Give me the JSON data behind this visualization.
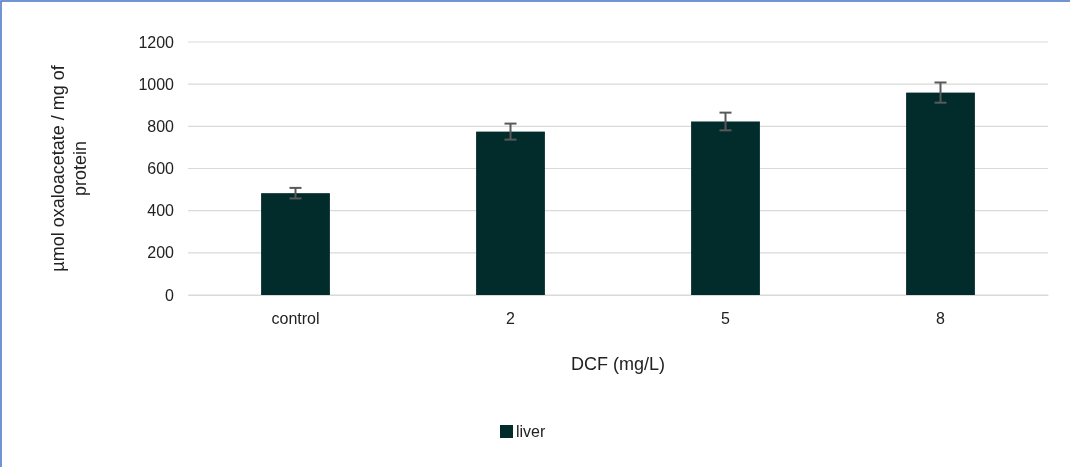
{
  "chart_data": {
    "type": "bar",
    "xlabel": "DCF (mg/L)",
    "ylabel": "µmol oxaloacetate / mg of protein",
    "categories": [
      "control",
      "2",
      "5",
      "8"
    ],
    "series": [
      {
        "name": "liver",
        "color": "#022b2b",
        "values": [
          483,
          775,
          823,
          960
        ],
        "errors": [
          25,
          38,
          42,
          48
        ]
      }
    ],
    "ylim": [
      0,
      1200
    ],
    "yticks": [
      0,
      200,
      400,
      600,
      800,
      1000,
      1200
    ],
    "grid": "y",
    "legend": "bottom"
  }
}
